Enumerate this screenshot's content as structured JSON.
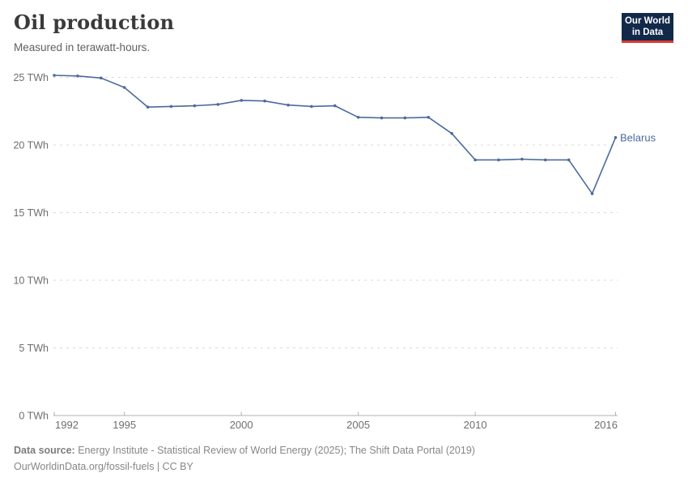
{
  "chart_data": {
    "type": "line",
    "title": "Oil production",
    "subtitle": "Measured in terawatt-hours.",
    "x": [
      1992,
      1993,
      1994,
      1995,
      1996,
      1997,
      1998,
      1999,
      2000,
      2001,
      2002,
      2003,
      2004,
      2005,
      2006,
      2007,
      2008,
      2009,
      2010,
      2011,
      2012,
      2013,
      2014,
      2015,
      2016
    ],
    "series": [
      {
        "name": "Belarus",
        "color": "#4C6A9C",
        "values": [
          25.15,
          25.1,
          24.95,
          24.25,
          22.8,
          22.85,
          22.9,
          23.0,
          23.3,
          23.25,
          22.95,
          22.85,
          22.9,
          22.05,
          22.0,
          22.0,
          22.05,
          20.85,
          18.9,
          18.9,
          18.95,
          18.9,
          18.9,
          16.4,
          20.55
        ]
      }
    ],
    "xlim": [
      1992,
      2016
    ],
    "ylim": [
      0,
      25
    ],
    "x_ticks": [
      1992,
      1995,
      2000,
      2005,
      2010,
      2016
    ],
    "y_ticks": [
      0,
      5,
      10,
      15,
      20,
      25
    ],
    "y_tick_suffix": " TWh",
    "grid": "horizontal-dashed",
    "legend_position": "end-of-line-label",
    "end_label": "Belarus"
  },
  "logo": {
    "line1": "Our World",
    "line2": "in Data"
  },
  "footer": {
    "source_prefix": "Data source:",
    "source_text": "Energy Institute - Statistical Review of World Energy (2025); The Shift Data Portal (2019)",
    "url": "OurWorldinData.org/fossil-fuels",
    "separator": " | ",
    "license": "CC BY"
  },
  "colors": {
    "line": "#4C6A9C",
    "grid": "#d9d9d9",
    "axis": "#b0b0b0",
    "tick-label": "#6e6e6e",
    "title-color": "#3a3a3a",
    "subtitle-color": "#606060",
    "footer-color": "#878787",
    "logo-bg": "#12294a",
    "logo-accent": "#dc3c31"
  }
}
